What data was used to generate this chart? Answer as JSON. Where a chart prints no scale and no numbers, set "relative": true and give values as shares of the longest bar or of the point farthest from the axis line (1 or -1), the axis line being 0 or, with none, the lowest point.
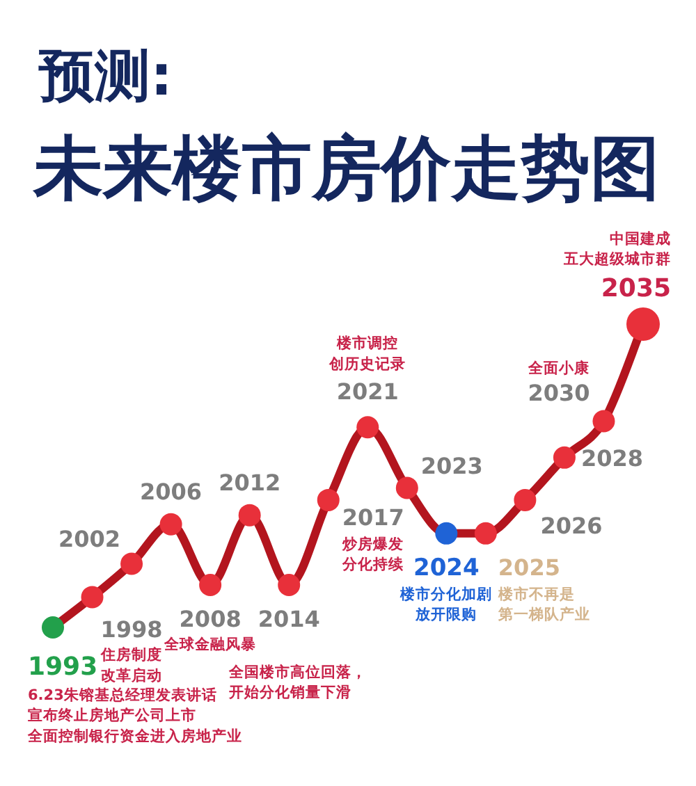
{
  "chart_data": {
    "type": "line",
    "relative": true,
    "title": "预测:",
    "subtitle": "未来楼市房价走势图",
    "categories": [
      null,
      null,
      null,
      null,
      null,
      null,
      null,
      null,
      null,
      null,
      null,
      null,
      null,
      null,
      null,
      null
    ],
    "series": [
      {
        "color": "#b3151e",
        "colors": [
          "#22a04b",
          "#e8303a",
          "#e8303a",
          "#e8303a",
          "#e8303a",
          "#e8303a",
          "#e8303a",
          "#e8303a",
          "#e8303a",
          "#e8303a",
          "#1f63d6",
          "#e8303a",
          "#e8303a",
          "#e8303a",
          "#e8303a",
          "#e8303a"
        ],
        "values": [
          0,
          0.1,
          0.21,
          0.34,
          0.14,
          0.37,
          0.14,
          0.42,
          0.66,
          0.46,
          0.31,
          0.31,
          0.42,
          0.56,
          0.68,
          1
        ]
      }
    ],
    "marker": "circle",
    "line_style": "solid",
    "grid": false,
    "annotations": [
      "1993",
      "6.23朱镕基总经理发表讲话宣布终止房地产公司上市全面控制银行资金进入房地产业",
      "1998",
      "住房制度改革启动",
      "2002",
      "2006",
      "2008",
      "全球金融风暴",
      "2012",
      "2014",
      "全国楼市高位回落，开始分化销量下滑",
      "2017",
      "炒房爆发分化持续",
      "2021",
      "楼市调控创历史记录",
      "2023",
      "2024",
      "楼市分化加剧放开限购",
      "2025",
      "楼市不再是第一梯队产业",
      "2026",
      "2028",
      "2030",
      "全面小康",
      "2035",
      "中国建成五大超级城市群"
    ]
  }
}
